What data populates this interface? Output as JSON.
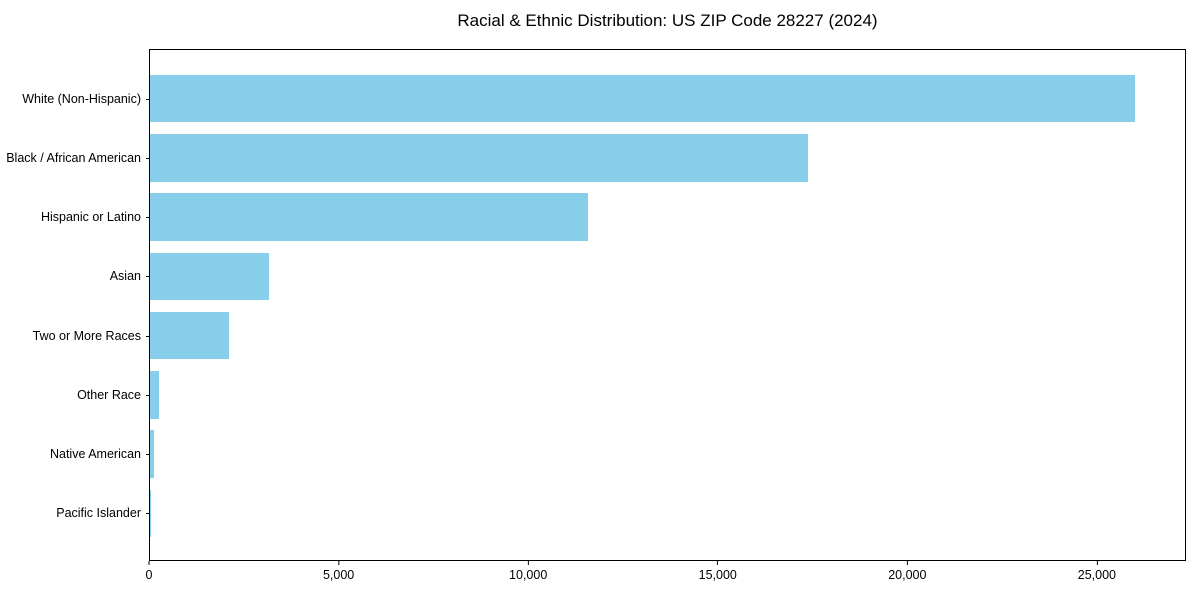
{
  "chart_data": {
    "type": "bar",
    "orientation": "horizontal",
    "title": "Racial & Ethnic Distribution: US ZIP Code 28227 (2024)",
    "categories": [
      "White (Non-Hispanic)",
      "Black / African American",
      "Hispanic or Latino",
      "Asian",
      "Two or More Races",
      "Other Race",
      "Native American",
      "Pacific Islander"
    ],
    "values": [
      26030,
      17380,
      11580,
      3140,
      2080,
      230,
      115,
      25
    ],
    "xlabel": "",
    "ylabel": "",
    "xlim": [
      0,
      27350
    ],
    "xticks": [
      0,
      5000,
      10000,
      15000,
      20000,
      25000
    ],
    "xtick_labels": [
      "0",
      "5,000",
      "10,000",
      "15,000",
      "20,000",
      "25,000"
    ],
    "bar_color": "#87CEEB",
    "frame_color": "#000000",
    "background_color": "#ffffff",
    "grid": false
  }
}
